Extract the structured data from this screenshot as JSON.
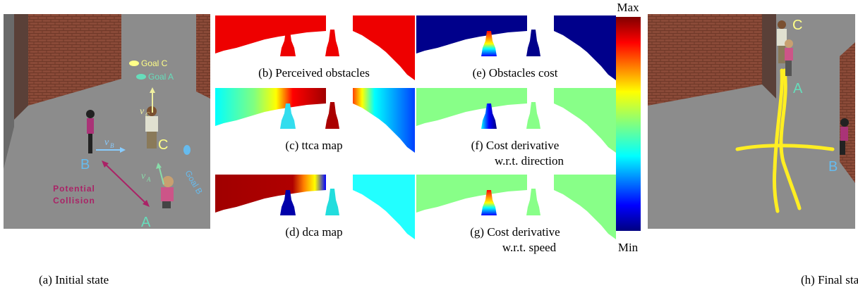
{
  "initial_state": {
    "caption": "(a) Initial state",
    "goals": [
      "Goal C",
      "Goal A",
      "Goal B"
    ],
    "agents": [
      "C",
      "B",
      "A"
    ],
    "velocities": [
      {
        "symbol": "v",
        "subscript": "C"
      },
      {
        "symbol": "v",
        "subscript": "B"
      },
      {
        "symbol": "v",
        "subscript": "A"
      }
    ],
    "collision_label": [
      "Potential",
      "Collision"
    ]
  },
  "maps": [
    {
      "caption": [
        "(b) Perceived obstacles"
      ]
    },
    {
      "caption": [
        "(c) ttca map"
      ]
    },
    {
      "caption": [
        "(d) dca map"
      ]
    },
    {
      "caption": [
        "(e) Obstacles cost"
      ]
    },
    {
      "caption": [
        "(f) Cost derivative",
        "w.r.t. direction"
      ]
    },
    {
      "caption": [
        "(g) Cost derivative",
        "w.r.t. speed"
      ]
    }
  ],
  "colorbar": {
    "max": "Max",
    "min": "Min"
  },
  "final_state": {
    "caption": "(h) Final state",
    "agents": [
      "C",
      "A",
      "B"
    ]
  }
}
